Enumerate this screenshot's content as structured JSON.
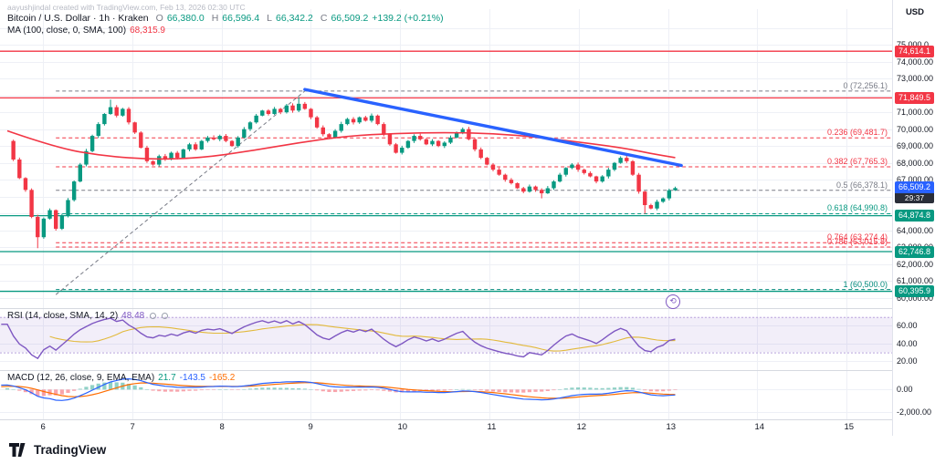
{
  "watermark": "aayushjindal created with TradingView.com, Feb 13, 2026 02:30 UTC",
  "legend": {
    "title": "Bitcoin / U.S. Dollar · 1h · Kraken",
    "o_label": "O",
    "o": "66,380.0",
    "h_label": "H",
    "h": "66,596.4",
    "l_label": "L",
    "l": "66,342.2",
    "c_label": "C",
    "c": "66,509.2",
    "change": "+139.2 (+0.21%)"
  },
  "legend_ma": {
    "label": "MA (100, close, 0, SMA, 100)",
    "value": "68,315.9"
  },
  "legend_rsi": {
    "label": "RSI (14, close, SMA, 14, 2)",
    "value": "48.48"
  },
  "legend_macd": {
    "label": "MACD (12, 26, close, 9, EMA, EMA)",
    "v1": "21.7",
    "v2": "-143.5",
    "v3": "-165.2"
  },
  "marker": {
    "glyph": "⟲"
  },
  "price_axis": {
    "currency": "USD",
    "current": {
      "price": "66,509.2",
      "countdown": "29:37"
    },
    "ticks": [
      {
        "label": "75,000.0",
        "price": 75000
      },
      {
        "label": "74,000.00",
        "price": 74000
      },
      {
        "label": "73,000.00",
        "price": 73000
      },
      {
        "label": "71,000.00",
        "price": 71000
      },
      {
        "label": "70,000.00",
        "price": 70000
      },
      {
        "label": "69,000.00",
        "price": 69000
      },
      {
        "label": "68,000.00",
        "price": 68000
      },
      {
        "label": "67,000.00",
        "price": 67000
      },
      {
        "label": "64,000.00",
        "price": 64000
      },
      {
        "label": "63,000.00",
        "price": 63000
      },
      {
        "label": "62,000.00",
        "price": 62000
      },
      {
        "label": "61,000.00",
        "price": 61000
      },
      {
        "label": "60,000.00",
        "price": 60000
      }
    ],
    "badges": [
      {
        "label": "74,614.1",
        "price": 74614.1,
        "color": "#f23645"
      },
      {
        "label": "71,849.5",
        "price": 71849.5,
        "color": "#f23645"
      },
      {
        "label": "64,874.8",
        "price": 64874.8,
        "color": "#089981"
      },
      {
        "label": "62,746.8",
        "price": 62746.8,
        "color": "#089981"
      },
      {
        "label": "60,395.9",
        "price": 60395.9,
        "color": "#089981"
      }
    ],
    "rsi_ticks": [
      {
        "label": "60.00",
        "v": 60
      },
      {
        "label": "40.00",
        "v": 40
      },
      {
        "label": "20.00",
        "v": 20
      }
    ],
    "macd_ticks": [
      {
        "label": "0.00",
        "v": 0
      },
      {
        "label": "-2,000.00",
        "v": -2000
      }
    ]
  },
  "time_axis": {
    "labels": [
      "6",
      "7",
      "8",
      "9",
      "10",
      "11",
      "12",
      "13",
      "14",
      "15"
    ]
  },
  "footer": {
    "brand": "TradingView"
  },
  "chart_data": {
    "type": "candlestick",
    "title": "Bitcoin / U.S. Dollar",
    "interval": "1h",
    "exchange": "Kraken",
    "last": {
      "open": 66380.0,
      "high": 66596.4,
      "low": 66342.2,
      "close": 66509.2,
      "change": 139.2,
      "change_pct": 0.21
    },
    "ylim": [
      59400,
      77000
    ],
    "x_labels_days": [
      "6",
      "7",
      "8",
      "9",
      "10",
      "11",
      "12",
      "13",
      "14",
      "15"
    ],
    "first_day_candle_index": 5.9,
    "candles_per_day": 14.7,
    "pre_closes": [
      67800,
      68200,
      67900,
      68400,
      68100,
      67700,
      67300,
      66900,
      67200,
      67600,
      68000,
      68400,
      68800,
      69200,
      69000,
      68700,
      69100,
      69400,
      69200,
      69300
    ],
    "closes": [
      69300,
      68200,
      67100,
      66400,
      64800,
      63600,
      64700,
      65200,
      64100,
      64900,
      65800,
      66900,
      67900,
      68700,
      69600,
      70300,
      70900,
      71300,
      70800,
      71200,
      70400,
      69800,
      68900,
      68100,
      67900,
      68400,
      68200,
      68600,
      68300,
      68800,
      69100,
      68800,
      69300,
      69500,
      69400,
      69600,
      69300,
      69000,
      69500,
      70000,
      70400,
      70800,
      71100,
      70900,
      71200,
      71000,
      71400,
      71100,
      71500,
      71200,
      70700,
      70100,
      69700,
      69500,
      69900,
      70300,
      70600,
      70400,
      70700,
      70500,
      70800,
      70300,
      69700,
      69100,
      68600,
      68900,
      69300,
      69600,
      69400,
      69100,
      69300,
      69000,
      69200,
      69500,
      69800,
      70000,
      69400,
      68800,
      68300,
      67900,
      67600,
      67300,
      67000,
      66800,
      66500,
      66300,
      66600,
      66400,
      66200,
      66500,
      66900,
      67300,
      67700,
      67900,
      67600,
      67400,
      67200,
      66900,
      67200,
      67600,
      68000,
      68300,
      68100,
      67300,
      66300,
      65500,
      65300,
      65700,
      65900,
      66380,
      66509.2
    ],
    "wick_overrides": {
      "5": {
        "low": 62950
      },
      "17": {
        "high": 71750
      },
      "48": {
        "high": 71900
      },
      "88": {
        "low": 65900
      },
      "105": {
        "low": 64990
      },
      "110": {
        "high": 66596.4,
        "low": 66342.2
      }
    },
    "ma100": {
      "value": 68315.9,
      "anchors": [
        [
          0,
          69900
        ],
        [
          8,
          68900
        ],
        [
          16,
          68400
        ],
        [
          24,
          68200
        ],
        [
          32,
          68300
        ],
        [
          40,
          68700
        ],
        [
          48,
          69200
        ],
        [
          56,
          69600
        ],
        [
          64,
          69750
        ],
        [
          72,
          69800
        ],
        [
          80,
          69750
        ],
        [
          88,
          69500
        ],
        [
          96,
          69150
        ],
        [
          102,
          68850
        ],
        [
          106,
          68550
        ],
        [
          110,
          68315.9
        ]
      ]
    },
    "trendline": {
      "i1": 49,
      "p1": 72350,
      "i2": 111,
      "p2": 67850,
      "color": "#2962ff"
    },
    "fib_baseline": {
      "i1": 8,
      "p1": 60200,
      "i2": 49,
      "p2": 72256.1
    },
    "fib": {
      "start": 72256.1,
      "end": 60500.0,
      "levels": [
        {
          "text": "0 (72,256.1)",
          "price": 72256.1,
          "color": "#787b86"
        },
        {
          "text": "0.236 (69,481.7)",
          "price": 69481.7,
          "color": "#f23645"
        },
        {
          "text": "0.382 (67,765.3)",
          "price": 67765.3,
          "color": "#f23645"
        },
        {
          "text": "0.5 (66,378.1)",
          "price": 66378.1,
          "color": "#787b86"
        },
        {
          "text": "0.618 (64,990.8)",
          "price": 64990.8,
          "color": "#089981"
        },
        {
          "text": "0.764 (63,274.4)",
          "price": 63274.4,
          "color": "#f23645"
        },
        {
          "text": "0.786 (63,015.8)",
          "price": 63015.8,
          "color": "#f23645"
        },
        {
          "text": "1 (60,500.0)",
          "price": 60500.0,
          "color": "#00897b"
        }
      ]
    },
    "horizontal_lines": [
      {
        "price": 74614.1,
        "color": "#f23645"
      },
      {
        "price": 71849.5,
        "color": "#f23645"
      },
      {
        "price": 64874.8,
        "color": "#089981"
      },
      {
        "price": 62746.8,
        "color": "#089981"
      },
      {
        "price": 60395.9,
        "color": "#089981"
      }
    ],
    "rsi": {
      "period": 14,
      "ma_period": 14,
      "current": 48.48,
      "band": [
        30,
        70
      ]
    },
    "macd": {
      "fast": 12,
      "slow": 26,
      "signal": 9,
      "current": {
        "hist": 21.7,
        "macd": -143.5,
        "signal": -165.2
      }
    }
  }
}
